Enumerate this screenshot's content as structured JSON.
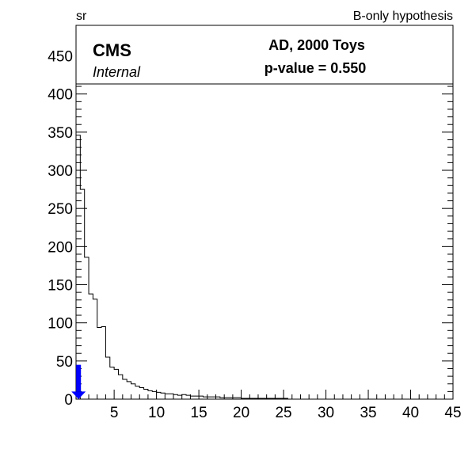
{
  "header": {
    "left_label": "sr",
    "right_label": "B-only hypothesis"
  },
  "legend": {
    "experiment": "CMS",
    "status": "Internal",
    "line1": "AD, 2000 Toys",
    "line2": "p-value = 0.550"
  },
  "chart_data": {
    "type": "histogram",
    "title": "",
    "xlabel": "",
    "ylabel": "",
    "xlim": [
      0.5,
      45
    ],
    "ylim": [
      0,
      490
    ],
    "xticks": [
      5,
      10,
      15,
      20,
      25,
      30,
      35,
      40,
      45
    ],
    "yticks": [
      0,
      50,
      100,
      150,
      200,
      250,
      300,
      350,
      400,
      450
    ],
    "bin_width": 0.5,
    "bin_start": 0.5,
    "counts": [
      346,
      275,
      186,
      138,
      131,
      94,
      95,
      55,
      42,
      39,
      32,
      26,
      23,
      20,
      17,
      15,
      13,
      11,
      10,
      9,
      8,
      7,
      7,
      6,
      5,
      6,
      5,
      4,
      4,
      4,
      3,
      3,
      3,
      3,
      2,
      2,
      2,
      2,
      2,
      1,
      1,
      1,
      1,
      1,
      1,
      1,
      1,
      1,
      1,
      1
    ],
    "observed_value": 0.8,
    "observed_marker_color": "#0000ff",
    "line_color": "#000000"
  }
}
